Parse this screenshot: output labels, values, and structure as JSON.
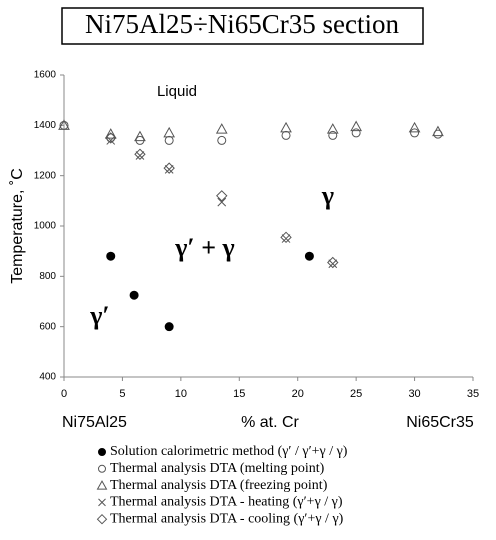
{
  "chart_data": {
    "type": "scatter",
    "title": "Ni75Al25÷Ni65Cr35 section",
    "ylabel": "Temperature, ˚C",
    "xlabel": "% at. Cr",
    "annotations": [
      "Ni75Al25",
      "Ni65Cr35",
      "Liquid",
      "γ",
      "γ′ + γ",
      "γ′"
    ],
    "xlim": [
      0,
      35
    ],
    "xticks": [
      0,
      5,
      10,
      15,
      20,
      25,
      30,
      35
    ],
    "ylim": [
      400,
      1600
    ],
    "yticks": [
      400,
      600,
      800,
      1000,
      1200,
      1400,
      1600
    ],
    "series": [
      {
        "name": "Solution calorimetric method (γ′ / γ′+γ / γ)",
        "color": "#000000",
        "marker": "filled-circle",
        "x": [
          4,
          6,
          9,
          21
        ],
        "values": [
          880,
          725,
          600,
          880
        ]
      },
      {
        "name": "Thermal analysis DTA (melting point)",
        "color": "#555555",
        "marker": "circle",
        "x": [
          0,
          4,
          6.5,
          9,
          13.5,
          19,
          23,
          25,
          30,
          32
        ],
        "values": [
          1400,
          1350,
          1340,
          1340,
          1340,
          1360,
          1360,
          1370,
          1370,
          1365
        ]
      },
      {
        "name": "Thermal analysis DTA (freezing point)",
        "color": "#555555",
        "marker": "triangle",
        "x": [
          0,
          4,
          6.5,
          9,
          13.5,
          19,
          23,
          25,
          30,
          32
        ],
        "values": [
          1400,
          1365,
          1355,
          1370,
          1385,
          1390,
          1385,
          1395,
          1390,
          1375
        ]
      },
      {
        "name": "Thermal analysis DTA - heating (γ′+γ / γ)",
        "color": "#555555",
        "marker": "cross",
        "x": [
          4,
          6.5,
          9,
          13.5,
          19,
          23
        ],
        "values": [
          1340,
          1280,
          1225,
          1095,
          950,
          850
        ]
      },
      {
        "name": "Thermal analysis DTA - cooling (γ′+γ / γ)",
        "color": "#555555",
        "marker": "diamond",
        "x": [
          4,
          6.5,
          9,
          13.5,
          19,
          23
        ],
        "values": [
          1350,
          1285,
          1230,
          1120,
          955,
          855
        ]
      }
    ]
  }
}
